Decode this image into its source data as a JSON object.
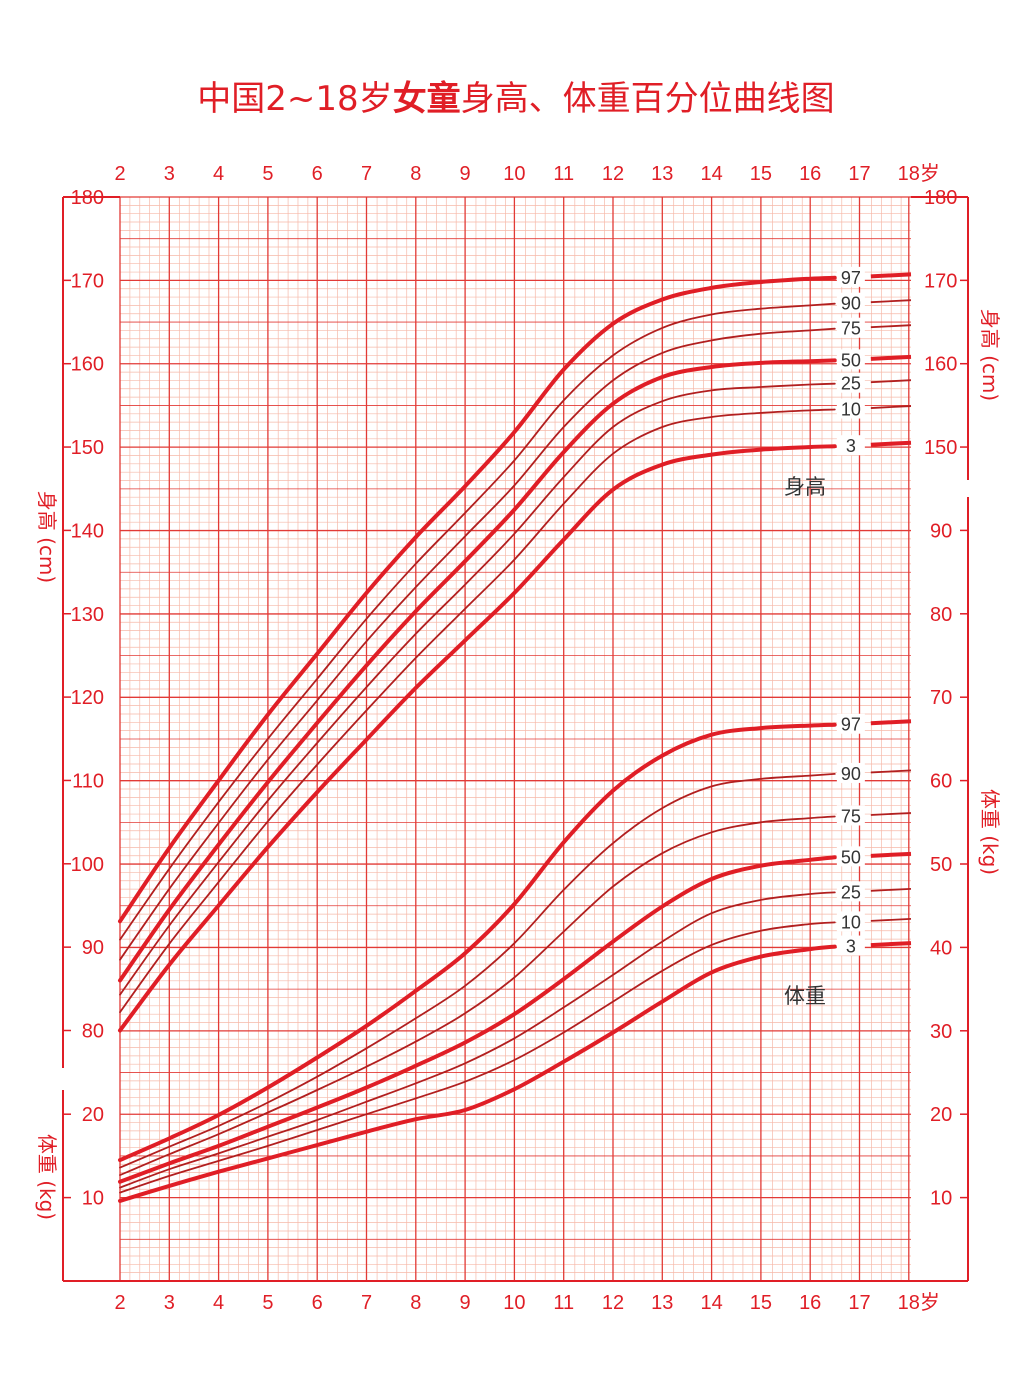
{
  "title": {
    "prefix": "中国2~18岁",
    "bold": "女童",
    "suffix": "身高、体重百分位曲线图"
  },
  "colors": {
    "accent": "#e01e26",
    "grid_minor": "#f6b9a9",
    "grid_major": "#e23a36",
    "curve_thin": "#b21f1f",
    "curve_bold": "#e01e26",
    "label_text": "#333333"
  },
  "axes": {
    "age_ticks": [
      "2",
      "3",
      "4",
      "5",
      "6",
      "7",
      "8",
      "9",
      "10",
      "11",
      "12",
      "13",
      "14",
      "15",
      "16",
      "17",
      "18岁"
    ],
    "height_ticks_left": [
      "80",
      "90",
      "100",
      "110",
      "120",
      "130",
      "140",
      "150",
      "160",
      "170",
      "180"
    ],
    "weight_ticks_left": [
      "10",
      "20"
    ],
    "height_ticks_right": [
      "150",
      "160",
      "170",
      "180"
    ],
    "weight_ticks_right": [
      "10",
      "20",
      "30",
      "40",
      "50",
      "60",
      "70",
      "80",
      "90"
    ],
    "height_label_left": "身高 (cm)",
    "weight_label_left": "体重 (kg)",
    "height_label_right": "身高 (cm)",
    "weight_label_right": "体重 (kg)"
  },
  "section_labels": {
    "height": "身高",
    "weight": "体重"
  },
  "chart_data": {
    "type": "line",
    "title": "中国2~18岁女童身高、体重百分位曲线图",
    "xlabel": "",
    "x_ticks": [
      "2",
      "3",
      "4",
      "5",
      "6",
      "7",
      "8",
      "9",
      "10",
      "11",
      "12",
      "13",
      "14",
      "15",
      "16",
      "17",
      "18岁"
    ],
    "x_range": [
      2,
      18
    ],
    "height_axis": {
      "label": "身高 (cm)",
      "range": [
        70,
        180
      ]
    },
    "weight_axis": {
      "label": "体重 (kg)",
      "range": [
        0,
        100
      ]
    },
    "grid": true,
    "height_series": [
      {
        "name": "97",
        "bold": true,
        "x": [
          2,
          3,
          4,
          5,
          6,
          7,
          8,
          9,
          10,
          11,
          12,
          13,
          14,
          15,
          16,
          16.5
        ],
        "values": [
          93.1,
          101.9,
          110.0,
          117.9,
          125.2,
          132.5,
          139.2,
          145.3,
          151.8,
          159.3,
          164.8,
          167.7,
          169.1,
          169.8,
          170.2,
          170.3
        ]
      },
      {
        "name": "90",
        "bold": false,
        "x": [
          2,
          3,
          4,
          5,
          6,
          7,
          8,
          9,
          10,
          11,
          12,
          13,
          14,
          15,
          16,
          16.5
        ],
        "values": [
          90.9,
          99.4,
          107.4,
          115.0,
          122.2,
          129.4,
          136.0,
          142.1,
          148.4,
          155.6,
          161.0,
          164.3,
          165.9,
          166.6,
          167.0,
          167.2
        ]
      },
      {
        "name": "75",
        "bold": false,
        "x": [
          2,
          3,
          4,
          5,
          6,
          7,
          8,
          9,
          10,
          11,
          12,
          13,
          14,
          15,
          16,
          16.5
        ],
        "values": [
          88.5,
          97.0,
          104.9,
          112.5,
          119.6,
          126.7,
          133.2,
          139.3,
          145.4,
          152.4,
          158.0,
          161.3,
          162.8,
          163.6,
          164.0,
          164.2
        ]
      },
      {
        "name": "50",
        "bold": true,
        "x": [
          2,
          3,
          4,
          5,
          6,
          7,
          8,
          9,
          10,
          11,
          12,
          13,
          14,
          15,
          16,
          16.5
        ],
        "values": [
          86.0,
          94.5,
          102.3,
          109.8,
          116.9,
          123.8,
          130.3,
          136.3,
          142.5,
          149.4,
          155.2,
          158.4,
          159.6,
          160.1,
          160.3,
          160.4
        ]
      },
      {
        "name": "25",
        "bold": false,
        "x": [
          2,
          3,
          4,
          5,
          6,
          7,
          8,
          9,
          10,
          11,
          12,
          13,
          14,
          15,
          16,
          16.5
        ],
        "values": [
          84.3,
          92.6,
          100.2,
          107.6,
          114.5,
          121.2,
          127.6,
          133.5,
          139.6,
          146.4,
          152.4,
          155.5,
          156.8,
          157.2,
          157.5,
          157.6
        ]
      },
      {
        "name": "10",
        "bold": false,
        "x": [
          2,
          3,
          4,
          5,
          6,
          7,
          8,
          9,
          10,
          11,
          12,
          13,
          14,
          15,
          16,
          16.5
        ],
        "values": [
          82.2,
          90.4,
          97.8,
          105.1,
          111.9,
          118.4,
          124.7,
          130.6,
          136.5,
          143.2,
          149.2,
          152.4,
          153.6,
          154.1,
          154.4,
          154.5
        ]
      },
      {
        "name": "3",
        "bold": true,
        "x": [
          2,
          3,
          4,
          5,
          6,
          7,
          8,
          9,
          10,
          11,
          12,
          13,
          14,
          15,
          16,
          16.5
        ],
        "values": [
          80.0,
          87.9,
          95.0,
          102.0,
          108.6,
          114.9,
          121.1,
          126.8,
          132.5,
          138.9,
          144.9,
          147.9,
          149.1,
          149.7,
          150.0,
          150.1
        ]
      }
    ],
    "weight_series": [
      {
        "name": "97",
        "bold": true,
        "x": [
          2,
          3,
          4,
          5,
          6,
          7,
          8,
          9,
          10,
          11,
          12,
          13,
          14,
          15,
          16,
          16.5
        ],
        "values": [
          14.5,
          17.1,
          19.9,
          23.2,
          26.8,
          30.6,
          34.8,
          39.3,
          45.2,
          52.6,
          58.8,
          63.0,
          65.5,
          66.3,
          66.6,
          66.7
        ]
      },
      {
        "name": "90",
        "bold": false,
        "x": [
          2,
          3,
          4,
          5,
          6,
          7,
          8,
          9,
          10,
          11,
          12,
          13,
          14,
          15,
          16,
          16.5
        ],
        "values": [
          13.6,
          16.1,
          18.6,
          21.4,
          24.5,
          27.9,
          31.5,
          35.4,
          40.5,
          46.9,
          52.5,
          56.7,
          59.3,
          60.2,
          60.6,
          60.8
        ]
      },
      {
        "name": "75",
        "bold": false,
        "x": [
          2,
          3,
          4,
          5,
          6,
          7,
          8,
          9,
          10,
          11,
          12,
          13,
          14,
          15,
          16,
          16.5
        ],
        "values": [
          12.7,
          15.2,
          17.6,
          20.2,
          22.9,
          25.7,
          28.7,
          32.1,
          36.4,
          41.9,
          47.3,
          51.3,
          53.8,
          55.0,
          55.5,
          55.7
        ]
      },
      {
        "name": "50",
        "bold": true,
        "x": [
          2,
          3,
          4,
          5,
          6,
          7,
          8,
          9,
          10,
          11,
          12,
          13,
          14,
          15,
          16,
          16.5
        ],
        "values": [
          11.9,
          14.1,
          16.2,
          18.5,
          20.8,
          23.2,
          25.8,
          28.6,
          32.0,
          36.2,
          40.7,
          44.9,
          48.2,
          49.8,
          50.5,
          50.8
        ]
      },
      {
        "name": "25",
        "bold": false,
        "x": [
          2,
          3,
          4,
          5,
          6,
          7,
          8,
          9,
          10,
          11,
          12,
          13,
          14,
          15,
          16,
          16.5
        ],
        "values": [
          11.2,
          13.4,
          15.3,
          17.3,
          19.3,
          21.5,
          23.7,
          26.1,
          29.1,
          32.8,
          36.7,
          40.7,
          44.1,
          45.7,
          46.4,
          46.6
        ]
      },
      {
        "name": "10",
        "bold": false,
        "x": [
          2,
          3,
          4,
          5,
          6,
          7,
          8,
          9,
          10,
          11,
          12,
          13,
          14,
          15,
          16,
          16.5
        ],
        "values": [
          10.6,
          12.6,
          14.4,
          16.2,
          18.1,
          20.0,
          21.9,
          23.9,
          26.5,
          29.8,
          33.5,
          37.2,
          40.3,
          42.0,
          42.8,
          43.0
        ]
      },
      {
        "name": "3",
        "bold": true,
        "x": [
          2,
          3,
          4,
          5,
          6,
          7,
          8,
          9,
          10,
          11,
          12,
          13,
          14,
          15,
          16,
          16.5
        ],
        "values": [
          9.6,
          11.4,
          13.1,
          14.7,
          16.3,
          17.9,
          19.4,
          20.5,
          23.0,
          26.3,
          29.8,
          33.5,
          37.0,
          38.9,
          39.8,
          40.1
        ]
      }
    ]
  }
}
